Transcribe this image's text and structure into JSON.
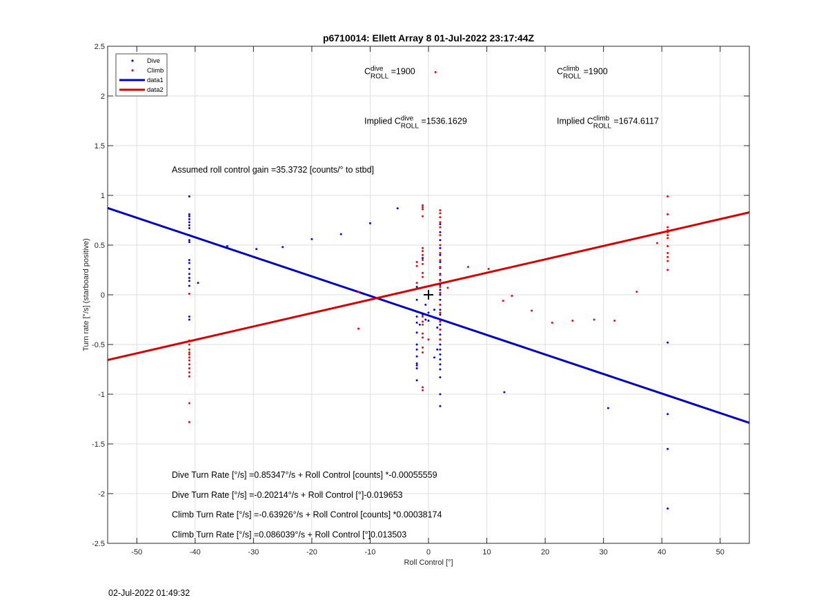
{
  "chart_data": {
    "type": "scatter",
    "title": "p6710014: Ellett Array 8 01-Jul-2022 23:17:44Z",
    "xlabel": "Roll Control [°]",
    "ylabel": "Turn rate [°/s] (starboard positive)",
    "xlim": [
      -55,
      55
    ],
    "ylim": [
      -2.5,
      2.5
    ],
    "xticks": [
      -50,
      -40,
      -30,
      -20,
      -10,
      0,
      10,
      20,
      30,
      40,
      50
    ],
    "yticks": [
      -2.5,
      -2,
      -1.5,
      -1,
      -0.5,
      0,
      0.5,
      1,
      1.5,
      2,
      2.5
    ],
    "xtick_labels": [
      "-50",
      "-40",
      "-30",
      "-20",
      "-10",
      "0",
      "10",
      "20",
      "30",
      "40",
      "50"
    ],
    "ytick_labels": [
      "-2.5",
      "-2",
      "-1.5",
      "-1",
      "-0.5",
      "0",
      "0.5",
      "1",
      "1.5",
      "2",
      "2.5"
    ],
    "grid": true,
    "legend_position": "top-left",
    "colors": {
      "dive": "#0000ff",
      "climb": "#ff0000",
      "data1": "#0000bf",
      "data2": "#d90000"
    },
    "series": [
      {
        "name": "Dive",
        "kind": "points",
        "points": [
          [
            -41,
            0.99
          ],
          [
            -41,
            0.81
          ],
          [
            -41,
            0.79
          ],
          [
            -41,
            0.76
          ],
          [
            -41,
            0.73
          ],
          [
            -41,
            0.7
          ],
          [
            -41,
            0.67
          ],
          [
            -41,
            0.6
          ],
          [
            -41,
            0.55
          ],
          [
            -41,
            0.53
          ],
          [
            -41,
            0.35
          ],
          [
            -41,
            0.32
          ],
          [
            -41,
            0.26
          ],
          [
            -41,
            0.21
          ],
          [
            -41,
            0.17
          ],
          [
            -41,
            0.14
          ],
          [
            -41,
            0.09
          ],
          [
            -41,
            -0.22
          ],
          [
            -41,
            -0.25
          ],
          [
            -39.5,
            0.12
          ],
          [
            -34.5,
            0.49
          ],
          [
            -29.5,
            0.46
          ],
          [
            -25,
            0.48
          ],
          [
            -20,
            0.56
          ],
          [
            -15,
            0.61
          ],
          [
            -10,
            0.72
          ],
          [
            -5.3,
            0.87
          ],
          [
            -2,
            0.08
          ],
          [
            -2,
            -0.05
          ],
          [
            -2,
            -0.17
          ],
          [
            -2,
            -0.22
          ],
          [
            -2,
            -0.28
          ],
          [
            -2,
            -0.38
          ],
          [
            -2,
            -0.5
          ],
          [
            -2,
            -0.55
          ],
          [
            -2,
            -0.62
          ],
          [
            -2,
            -0.69
          ],
          [
            -2,
            -0.71
          ],
          [
            -2,
            -0.74
          ],
          [
            -2,
            -0.86
          ],
          [
            -1.5,
            -0.3
          ],
          [
            -1,
            -0.2
          ],
          [
            -0.5,
            -0.1
          ],
          [
            -0.5,
            -0.25
          ],
          [
            -1,
            0.37
          ],
          [
            0,
            -0.18
          ],
          [
            0,
            -0.26
          ],
          [
            1,
            -0.15
          ],
          [
            1,
            -0.23
          ],
          [
            1,
            -0.63
          ],
          [
            1.5,
            -0.33
          ],
          [
            1.5,
            -0.55
          ],
          [
            2,
            0.71
          ],
          [
            2,
            0.63
          ],
          [
            2,
            0.55
          ],
          [
            2,
            0.47
          ],
          [
            2,
            0.4
          ],
          [
            2,
            0.33
          ],
          [
            2,
            0.27
          ],
          [
            2,
            0.21
          ],
          [
            2,
            0.15
          ],
          [
            2,
            0.1
          ],
          [
            2,
            0.05
          ],
          [
            2,
            0.0
          ],
          [
            2,
            -0.05
          ],
          [
            2,
            -0.1
          ],
          [
            2,
            -0.15
          ],
          [
            2,
            -0.2
          ],
          [
            2,
            -0.25
          ],
          [
            2,
            -0.3
          ],
          [
            2,
            -0.35
          ],
          [
            2,
            -0.4
          ],
          [
            2,
            -0.45
          ],
          [
            2,
            -0.5
          ],
          [
            2,
            -0.55
          ],
          [
            2,
            -0.6
          ],
          [
            2,
            -0.65
          ],
          [
            2,
            -0.7
          ],
          [
            2,
            -0.75
          ],
          [
            2,
            -0.83
          ],
          [
            2,
            -1.0
          ],
          [
            2,
            -1.12
          ],
          [
            13,
            -0.98
          ],
          [
            30.8,
            -1.14
          ],
          [
            41,
            -0.48
          ],
          [
            41,
            -1.2
          ],
          [
            41,
            -1.55
          ],
          [
            41,
            -2.15
          ]
        ]
      },
      {
        "name": "Climb",
        "kind": "points",
        "points": [
          [
            -41,
            0.01
          ],
          [
            -41,
            -0.46
          ],
          [
            -41,
            -0.5
          ],
          [
            -41,
            -0.55
          ],
          [
            -41,
            -0.58
          ],
          [
            -41,
            -0.6
          ],
          [
            -41,
            -0.63
          ],
          [
            -41,
            -0.66
          ],
          [
            -41,
            -0.7
          ],
          [
            -41,
            -0.74
          ],
          [
            -41,
            -0.78
          ],
          [
            -41,
            -0.82
          ],
          [
            -41,
            -1.09
          ],
          [
            -41,
            -1.28
          ],
          [
            -12,
            0.03
          ],
          [
            -12,
            -0.34
          ],
          [
            -2,
            0.33
          ],
          [
            -2,
            0.29
          ],
          [
            -2,
            0.12
          ],
          [
            -2,
            0.06
          ],
          [
            -1,
            0.9
          ],
          [
            -1,
            0.88
          ],
          [
            -1,
            0.86
          ],
          [
            -1,
            0.79
          ],
          [
            -1,
            0.47
          ],
          [
            -1,
            0.44
          ],
          [
            -1,
            0.4
          ],
          [
            -1,
            0.35
          ],
          [
            -1,
            0.31
          ],
          [
            -1,
            0.22
          ],
          [
            -1,
            0.18
          ],
          [
            -1,
            -0.22
          ],
          [
            -1,
            -0.27
          ],
          [
            -1,
            -0.3
          ],
          [
            -1,
            -0.39
          ],
          [
            -1,
            -0.43
          ],
          [
            -1,
            -0.53
          ],
          [
            -1,
            -0.58
          ],
          [
            -1,
            -0.93
          ],
          [
            -1,
            -0.96
          ],
          [
            0,
            -0.45
          ],
          [
            1.2,
            2.24
          ],
          [
            2,
            0.85
          ],
          [
            2,
            0.82
          ],
          [
            2,
            0.78
          ],
          [
            2,
            0.73
          ],
          [
            2,
            0.68
          ],
          [
            2,
            0.6
          ],
          [
            2,
            0.5
          ],
          [
            2,
            0.42
          ],
          [
            2,
            0.35
          ],
          [
            2,
            0.28
          ],
          [
            2,
            0.2
          ],
          [
            2,
            0.14
          ],
          [
            2,
            0.08
          ],
          [
            2,
            0.02
          ],
          [
            2,
            -0.1
          ],
          [
            2,
            -0.18
          ],
          [
            2,
            -0.27
          ],
          [
            2,
            -0.35
          ],
          [
            2,
            -0.45
          ],
          [
            3.3,
            0.07
          ],
          [
            6.8,
            0.28
          ],
          [
            10.3,
            0.26
          ],
          [
            12.8,
            -0.06
          ],
          [
            14.3,
            -0.01
          ],
          [
            17.7,
            -0.16
          ],
          [
            21.2,
            -0.28
          ],
          [
            24.7,
            -0.26
          ],
          [
            28.4,
            -0.25
          ],
          [
            31.9,
            -0.26
          ],
          [
            35.7,
            0.03
          ],
          [
            39.2,
            0.52
          ],
          [
            41,
            0.99
          ],
          [
            41,
            0.81
          ],
          [
            41,
            0.68
          ],
          [
            41,
            0.65
          ],
          [
            41,
            0.63
          ],
          [
            41,
            0.6
          ],
          [
            41,
            0.57
          ],
          [
            41,
            0.49
          ],
          [
            41,
            0.42
          ],
          [
            41,
            0.38
          ],
          [
            41,
            0.34
          ],
          [
            41,
            0.25
          ]
        ]
      },
      {
        "name": "data1",
        "kind": "line",
        "points": [
          [
            -55,
            0.873
          ],
          [
            55,
            -1.288
          ]
        ]
      },
      {
        "name": "data2",
        "kind": "line",
        "points": [
          [
            -55,
            -0.656
          ],
          [
            55,
            0.829
          ]
        ]
      }
    ],
    "marker": {
      "x": 0,
      "y": 0
    },
    "annotations": [
      {
        "id": "c-dive",
        "parts": [
          "C",
          "dive",
          "ROLL",
          " =1900"
        ],
        "x": -11,
        "y": 2.22
      },
      {
        "id": "c-climb",
        "parts": [
          "C",
          "climb",
          "ROLL",
          " =1900"
        ],
        "x": 22,
        "y": 2.22
      },
      {
        "id": "implied-dive",
        "parts": [
          "Implied C",
          "dive",
          "ROLL",
          " =1536.1629"
        ],
        "x": -11,
        "y": 1.72
      },
      {
        "id": "implied-climb",
        "parts": [
          "Implied C",
          "climb",
          "ROLL",
          " =1674.6117"
        ],
        "x": 22,
        "y": 1.72
      },
      {
        "id": "gain",
        "text": "Assumed roll control gain =35.3732 [counts/° to stbd]",
        "x": -44,
        "y": 1.23
      },
      {
        "id": "eq1",
        "text": "Dive Turn Rate [°/s] =0.85347°/s + Roll Control [counts] *-0.00055559",
        "x": -44,
        "y": -1.84
      },
      {
        "id": "eq2",
        "text": "Dive Turn Rate [°/s] =-0.20214°/s + Roll Control [°]-0.019653",
        "x": -44,
        "y": -2.04
      },
      {
        "id": "eq3",
        "text": "Climb Turn Rate [°/s] =-0.63926°/s + Roll Control [counts] *0.00038174",
        "x": -44,
        "y": -2.24
      },
      {
        "id": "eq4",
        "text": "Climb Turn Rate [°/s] =0.086039°/s + Roll Control [°]0.013503",
        "x": -44,
        "y": -2.44
      }
    ]
  },
  "timestamp": "02-Jul-2022 01:49:32"
}
